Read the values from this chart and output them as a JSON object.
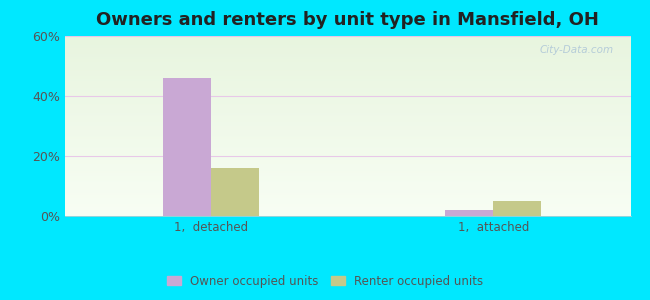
{
  "title": "Owners and renters by unit type in Mansfield, OH",
  "categories": [
    "1,  detached",
    "1,  attached"
  ],
  "owner_values": [
    46,
    2
  ],
  "renter_values": [
    16,
    5
  ],
  "owner_color": "#c9a8d4",
  "renter_color": "#c5c98a",
  "background_outer": "#00e8ff",
  "ylim": [
    0,
    60
  ],
  "yticks": [
    0,
    20,
    40,
    60
  ],
  "ytick_labels": [
    "0%",
    "20%",
    "40%",
    "60%"
  ],
  "title_fontsize": 13,
  "legend_labels": [
    "Owner occupied units",
    "Renter occupied units"
  ],
  "watermark": "City-Data.com",
  "bar_width": 0.28,
  "group_positions": [
    0.55,
    2.2
  ]
}
